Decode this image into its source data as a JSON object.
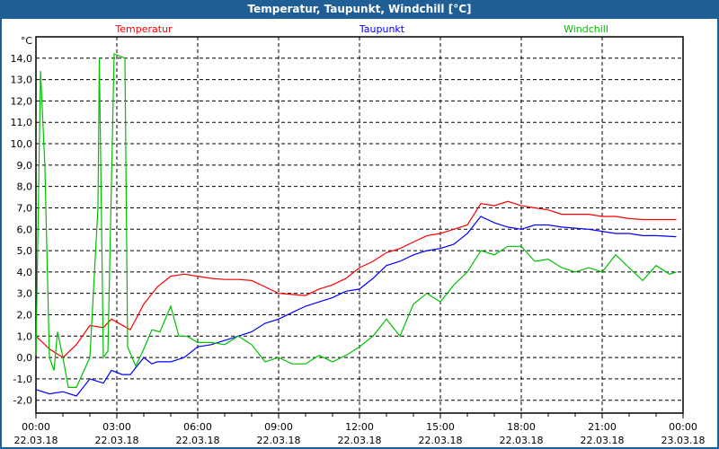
{
  "window": {
    "title": "Temperatur, Taupunkt, Windchill [°C]"
  },
  "chart_data": {
    "type": "line",
    "title": "Temperatur, Taupunkt, Windchill [°C]",
    "ylabel": "°C",
    "ylim": [
      -2.6,
      15.0
    ],
    "xlim_hours": [
      0,
      24
    ],
    "grid": true,
    "y_ticks": [
      "-2,0",
      "-1,0",
      "0,0",
      "1,0",
      "2,0",
      "3,0",
      "4,0",
      "5,0",
      "6,0",
      "7,0",
      "8,0",
      "9,0",
      "10,0",
      "11,0",
      "12,0",
      "13,0",
      "14,0"
    ],
    "x_ticks": [
      {
        "time": "00:00",
        "date": "22.03.18"
      },
      {
        "time": "03:00",
        "date": "22.03.18"
      },
      {
        "time": "06:00",
        "date": "22.03.18"
      },
      {
        "time": "09:00",
        "date": "22.03.18"
      },
      {
        "time": "12:00",
        "date": "22.03.18"
      },
      {
        "time": "15:00",
        "date": "22.03.18"
      },
      {
        "time": "18:00",
        "date": "22.03.18"
      },
      {
        "time": "21:00",
        "date": "22.03.18"
      },
      {
        "time": "00:00",
        "date": "23.03.18"
      }
    ],
    "series": [
      {
        "name": "Temperatur",
        "color": "#ff0000",
        "x": [
          0,
          0.5,
          1,
          1.5,
          2,
          2.5,
          2.8,
          3.5,
          4,
          4.5,
          5,
          5.5,
          6,
          6.5,
          7,
          7.5,
          8,
          8.5,
          9,
          9.5,
          10,
          10.5,
          11,
          11.5,
          12,
          12.5,
          13,
          13.5,
          14,
          14.5,
          15,
          15.5,
          16,
          16.5,
          17,
          17.5,
          18,
          18.5,
          19,
          19.5,
          20,
          20.5,
          21,
          21.5,
          22,
          22.5,
          23,
          23.75
        ],
        "y": [
          1.0,
          0.4,
          0.0,
          0.6,
          1.5,
          1.4,
          1.8,
          1.3,
          2.5,
          3.3,
          3.8,
          3.9,
          3.8,
          3.7,
          3.65,
          3.65,
          3.6,
          3.3,
          3.0,
          2.95,
          2.9,
          3.2,
          3.4,
          3.7,
          4.2,
          4.5,
          4.9,
          5.1,
          5.4,
          5.7,
          5.8,
          6.0,
          6.2,
          7.2,
          7.1,
          7.3,
          7.1,
          7.0,
          6.9,
          6.7,
          6.7,
          6.7,
          6.6,
          6.6,
          6.5,
          6.45,
          6.45,
          6.45
        ]
      },
      {
        "name": "Taupunkt",
        "color": "#0000ff",
        "x": [
          0,
          0.5,
          1,
          1.5,
          2,
          2.5,
          2.8,
          3.2,
          3.5,
          4,
          4.3,
          4.5,
          5,
          5.5,
          6,
          6.5,
          7,
          7.5,
          8,
          8.5,
          9,
          9.5,
          10,
          10.5,
          11,
          11.5,
          12,
          12.5,
          13,
          13.5,
          14,
          14.5,
          15,
          15.5,
          16,
          16.5,
          17,
          17.5,
          18,
          18.5,
          19,
          19.5,
          20,
          20.5,
          21,
          21.5,
          22,
          22.5,
          23,
          23.75
        ],
        "y": [
          -1.5,
          -1.7,
          -1.6,
          -1.8,
          -1.0,
          -1.2,
          -0.6,
          -0.8,
          -0.8,
          0.0,
          -0.3,
          -0.2,
          -0.2,
          0.0,
          0.5,
          0.6,
          0.8,
          1.0,
          1.2,
          1.6,
          1.8,
          2.1,
          2.4,
          2.6,
          2.8,
          3.1,
          3.2,
          3.7,
          4.3,
          4.5,
          4.8,
          5.0,
          5.1,
          5.3,
          5.8,
          6.6,
          6.3,
          6.1,
          6.0,
          6.2,
          6.2,
          6.1,
          6.05,
          6.0,
          5.9,
          5.8,
          5.8,
          5.7,
          5.7,
          5.65
        ]
      },
      {
        "name": "Windchill",
        "color": "#00c000",
        "x": [
          0,
          0.17,
          0.33,
          0.5,
          0.67,
          0.8,
          1.0,
          1.2,
          1.5,
          2.0,
          2.3,
          2.35,
          2.5,
          2.67,
          2.9,
          3.3,
          3.4,
          3.7,
          4.0,
          4.3,
          4.6,
          5.0,
          5.3,
          5.6,
          6.0,
          6.5,
          7.0,
          7.5,
          8.0,
          8.5,
          9.0,
          9.5,
          10.0,
          10.5,
          11.0,
          11.5,
          12.0,
          12.5,
          13.0,
          13.5,
          14.0,
          14.5,
          15.0,
          15.5,
          16.0,
          16.5,
          17.0,
          17.5,
          18.0,
          18.5,
          19.0,
          19.5,
          20.0,
          20.5,
          21.0,
          21.5,
          22.0,
          22.5,
          23.0,
          23.5,
          23.75
        ],
        "y": [
          0.1,
          13.4,
          9.0,
          0.0,
          -0.6,
          1.2,
          0.0,
          -1.4,
          -1.4,
          0.0,
          7.0,
          14.0,
          0.0,
          0.3,
          14.2,
          14.0,
          0.5,
          -0.4,
          0.4,
          1.3,
          1.2,
          2.4,
          1.0,
          1.0,
          0.7,
          0.7,
          0.6,
          1.0,
          0.6,
          -0.2,
          0.0,
          -0.3,
          -0.3,
          0.1,
          -0.2,
          0.1,
          0.5,
          1.0,
          1.8,
          1.0,
          2.5,
          3.0,
          2.6,
          3.4,
          4.0,
          5.0,
          4.8,
          5.2,
          5.2,
          4.5,
          4.6,
          4.2,
          4.0,
          4.2,
          4.0,
          4.8,
          4.2,
          3.6,
          4.3,
          3.9,
          4.0
        ]
      }
    ]
  }
}
